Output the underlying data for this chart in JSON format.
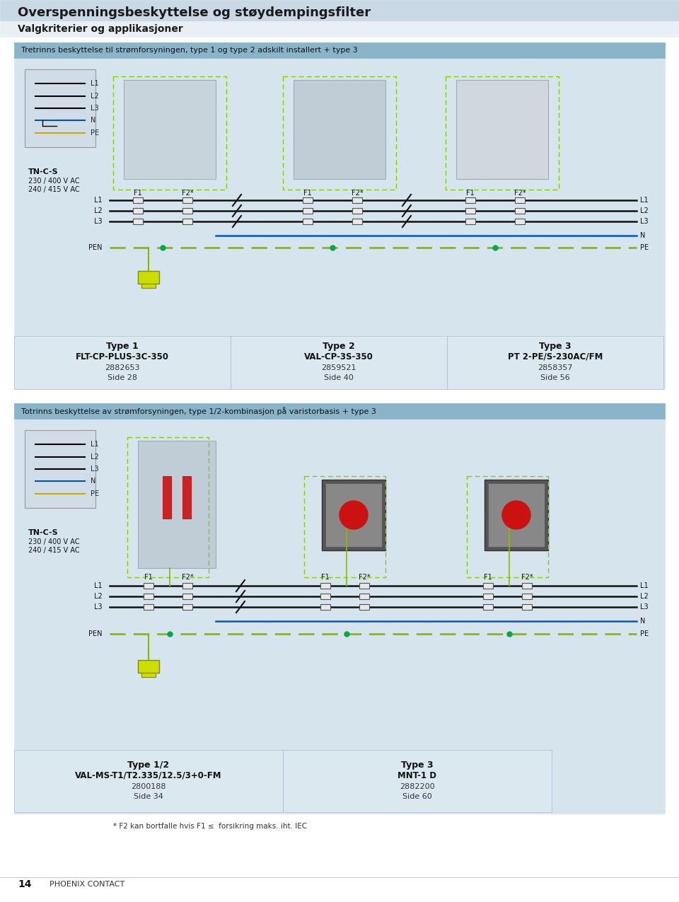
{
  "page_bg": "#f0f4f7",
  "title_bg": "#c8d8e4",
  "title_text": "Overspenningsbeskyttelse og støydempingsfilter",
  "subtitle_text": "Valgkriterier og applikasjoner",
  "section1_header": "Tretrinns beskyttelse til strømforsyningen, type 1 og type 2 adskilt installert + type 3",
  "section2_header": "Totrinns beskyttelse av strømforsyningen, type 1/2-kombinasjon på varistorbasis + type 3",
  "diagram_bg": "#d6e4ee",
  "table_header_bg": "#b8cdd8",
  "table_row_bg": "#dce8f0",
  "label_tncs": "TN-C-S",
  "label_voltage1": "230 / 400 V AC",
  "label_voltage2": "240 / 415 V AC",
  "lines_L": [
    "L1",
    "L2",
    "L3"
  ],
  "line_PEN": "PEN",
  "line_N": "N",
  "line_PE": "PE",
  "section1_types": [
    {
      "type": "Type 1",
      "name": "FLT-CP-PLUS-3C-350",
      "number": "2882653",
      "page": "Side 28"
    },
    {
      "type": "Type 2",
      "name": "VAL-CP-3S-350",
      "number": "2859521",
      "page": "Side 40"
    },
    {
      "type": "Type 3",
      "name": "PT 2-PE/S-230AC/FM",
      "number": "2858357",
      "page": "Side 56"
    }
  ],
  "section2_types": [
    {
      "type": "Type 1/2",
      "name": "VAL-MS-T1/T2.335/12.5/3+0-FM",
      "number": "2800188",
      "page": "Side 34"
    },
    {
      "type": "Type 3",
      "name": "MNT-1 D",
      "number": "2882200",
      "page": "Side 60"
    }
  ],
  "footnote": "* F2 kan bortfalle hvis F1 ≤  forsikring maks. iht. IEC",
  "page_number": "14",
  "publisher": "PHOENIX CONTACT",
  "wire_colors": {
    "L1": "#000000",
    "L2": "#000000",
    "L3": "#000000",
    "N": "#0055aa",
    "PE": "#d4b800",
    "PEN_dashed": "#d4b800",
    "green_line": "#00aa44",
    "dashed_border": "#88cc00"
  },
  "green_yellow_color": "#ccdd00",
  "dark_text": "#1a1a1a",
  "medium_text": "#333333",
  "body_bg": "#ffffff"
}
